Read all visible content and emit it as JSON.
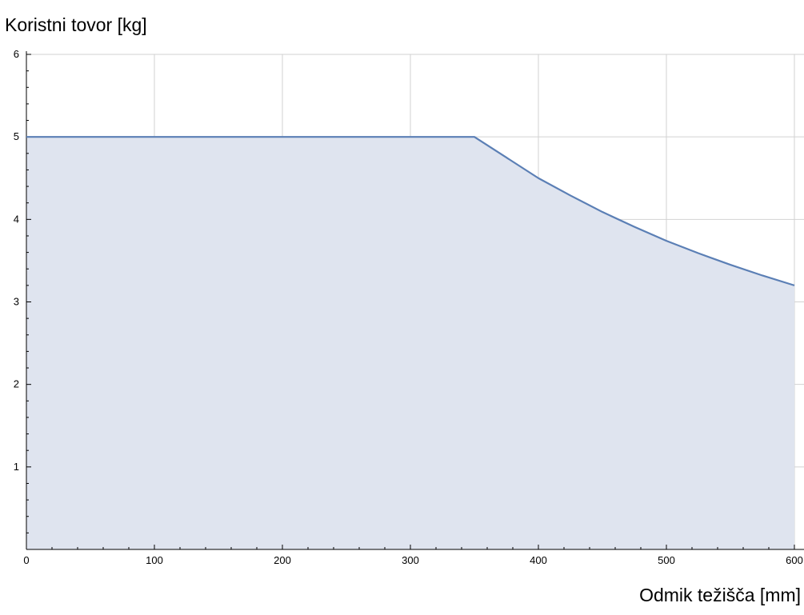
{
  "chart_data": {
    "type": "area",
    "title": "",
    "xlabel": "Odmik težišča [mm]",
    "ylabel": "Koristni tovor [kg]",
    "xlim": [
      0,
      600
    ],
    "ylim": [
      0,
      6
    ],
    "x_ticks": [
      0,
      100,
      200,
      300,
      400,
      500,
      600
    ],
    "y_ticks": [
      1,
      2,
      3,
      4,
      5,
      6
    ],
    "x_minor_step": 20,
    "y_minor_step": 0.2,
    "grid": true,
    "series": [
      {
        "x": [
          0,
          350,
          375,
          400,
          425,
          450,
          475,
          500,
          525,
          550,
          575,
          600
        ],
        "y": [
          5,
          5,
          4.75,
          4.5,
          4.29,
          4.09,
          3.91,
          3.74,
          3.59,
          3.45,
          3.32,
          3.2
        ]
      }
    ],
    "colors": {
      "line": "#5b7fb5",
      "fill": "#dfe4ef",
      "grid": "#d2d2d2",
      "axis": "#000000"
    }
  }
}
